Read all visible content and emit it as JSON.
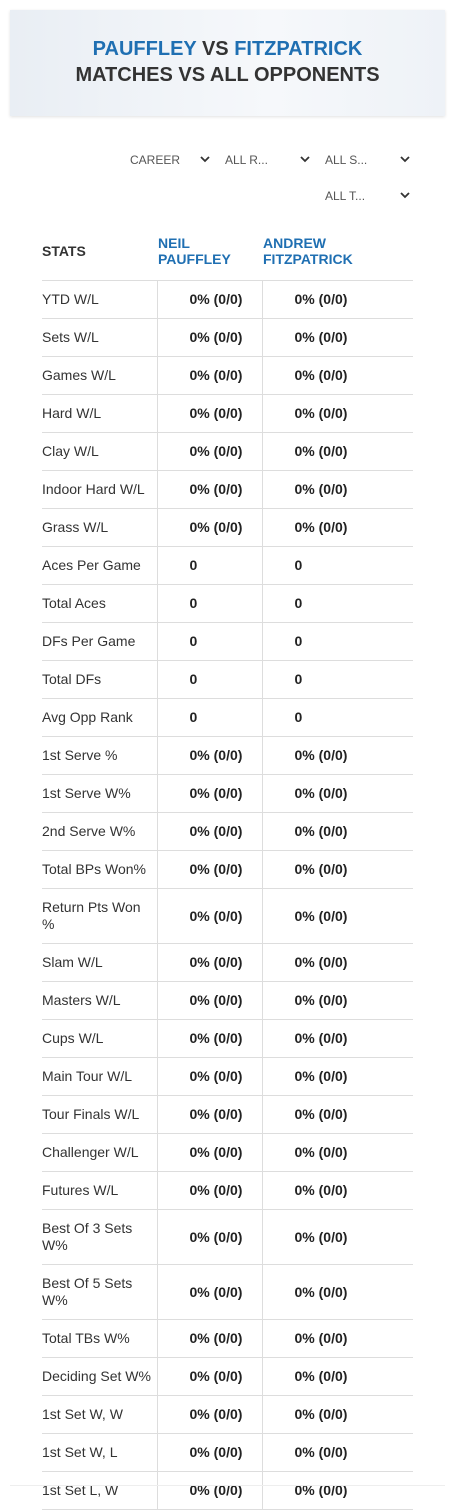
{
  "header": {
    "player1": "PAUFFLEY",
    "vs": "VS",
    "player2": "FITZPATRICK",
    "subtitle": "MATCHES VS ALL OPPONENTS"
  },
  "filters": [
    "CAREER",
    "ALL R...",
    "ALL S...",
    "ALL T..."
  ],
  "table": {
    "columns": [
      "STATS",
      "NEIL PAUFFLEY",
      "ANDREW FITZPATRICK"
    ],
    "rows": [
      [
        "YTD W/L",
        "0% (0/0)",
        "0% (0/0)"
      ],
      [
        "Sets W/L",
        "0% (0/0)",
        "0% (0/0)"
      ],
      [
        "Games W/L",
        "0% (0/0)",
        "0% (0/0)"
      ],
      [
        "Hard W/L",
        "0% (0/0)",
        "0% (0/0)"
      ],
      [
        "Clay W/L",
        "0% (0/0)",
        "0% (0/0)"
      ],
      [
        "Indoor Hard W/L",
        "0% (0/0)",
        "0% (0/0)"
      ],
      [
        "Grass W/L",
        "0% (0/0)",
        "0% (0/0)"
      ],
      [
        "Aces Per Game",
        "0",
        "0"
      ],
      [
        "Total Aces",
        "0",
        "0"
      ],
      [
        "DFs Per Game",
        "0",
        "0"
      ],
      [
        "Total DFs",
        "0",
        "0"
      ],
      [
        "Avg Opp Rank",
        "0",
        "0"
      ],
      [
        "1st Serve %",
        "0% (0/0)",
        "0% (0/0)"
      ],
      [
        "1st Serve W%",
        "0% (0/0)",
        "0% (0/0)"
      ],
      [
        "2nd Serve W%",
        "0% (0/0)",
        "0% (0/0)"
      ],
      [
        "Total BPs Won%",
        "0% (0/0)",
        "0% (0/0)"
      ],
      [
        "Return Pts Won %",
        "0% (0/0)",
        "0% (0/0)"
      ],
      [
        "Slam W/L",
        "0% (0/0)",
        "0% (0/0)"
      ],
      [
        "Masters W/L",
        "0% (0/0)",
        "0% (0/0)"
      ],
      [
        "Cups W/L",
        "0% (0/0)",
        "0% (0/0)"
      ],
      [
        "Main Tour W/L",
        "0% (0/0)",
        "0% (0/0)"
      ],
      [
        "Tour Finals W/L",
        "0% (0/0)",
        "0% (0/0)"
      ],
      [
        "Challenger W/L",
        "0% (0/0)",
        "0% (0/0)"
      ],
      [
        "Futures W/L",
        "0% (0/0)",
        "0% (0/0)"
      ],
      [
        "Best Of 3 Sets W%",
        "0% (0/0)",
        "0% (0/0)"
      ],
      [
        "Best Of 5 Sets W%",
        "0% (0/0)",
        "0% (0/0)"
      ],
      [
        "Total TBs W%",
        "0% (0/0)",
        "0% (0/0)"
      ],
      [
        "Deciding Set W%",
        "0% (0/0)",
        "0% (0/0)"
      ],
      [
        "1st Set W, W",
        "0% (0/0)",
        "0% (0/0)"
      ],
      [
        "1st Set W, L",
        "0% (0/0)",
        "0% (0/0)"
      ],
      [
        "1st Set L, W",
        "0% (0/0)",
        "0% (0/0)"
      ]
    ]
  }
}
